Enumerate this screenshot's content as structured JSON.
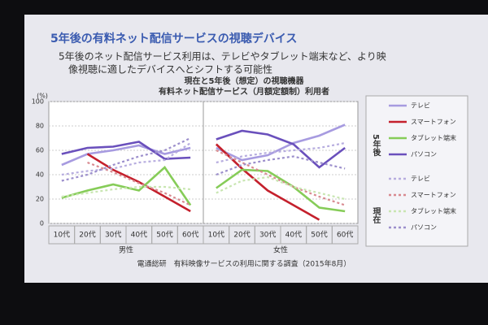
{
  "slide": {
    "title": "5年後の有料ネット配信サービスの視聴デバイス",
    "bullet": [
      "5年後のネット配信サービス利用は、テレビやタブレット端末など、より映",
      "像視聴に適したデバイスへとシフトする可能性"
    ],
    "source": "電通総研　有料映像サービスの利用に関する調査（2015年8月）"
  },
  "chart_data": {
    "type": "line",
    "title": "現在と5年後（想定）の視聴機器",
    "subtitle": "有料ネット配信サービス（月額定額制）利用者",
    "ylabel": "(%)",
    "panels": [
      "男性",
      "女性"
    ],
    "categories": [
      "10代",
      "20代",
      "30代",
      "40代",
      "50代",
      "60代",
      "10代",
      "20代",
      "30代",
      "40代",
      "50代",
      "60代"
    ],
    "ylim": [
      0,
      100
    ],
    "yticks": [
      0,
      20,
      40,
      60,
      80,
      100
    ],
    "grid": true,
    "legend_groups": [
      "5年後",
      "現在"
    ],
    "series": [
      {
        "name": "テレビ",
        "color": "#a79be0",
        "style": "solid",
        "values": [
          48,
          57,
          60,
          64,
          57,
          62,
          62,
          52,
          56,
          66,
          72,
          81
        ]
      },
      {
        "name": "スマートフォン",
        "color": "#c4202c",
        "style": "solid",
        "values": [
          null,
          57,
          44,
          34,
          22,
          10,
          65,
          45,
          27,
          15,
          3,
          null
        ]
      },
      {
        "name": "タブレット端末",
        "color": "#86cc58",
        "style": "solid",
        "values": [
          21,
          27,
          32,
          27,
          46,
          15,
          29,
          44,
          43,
          30,
          13,
          10
        ]
      },
      {
        "name": "パソコン",
        "color": "#6a50bc",
        "style": "solid",
        "values": [
          57,
          62,
          63,
          67,
          53,
          54,
          69,
          76,
          73,
          65,
          46,
          62
        ]
      },
      {
        "name": "テレビ",
        "color": "#b7addf",
        "style": "dotted",
        "values": [
          40,
          43,
          45,
          50,
          52,
          66,
          50,
          55,
          58,
          60,
          62,
          66
        ]
      },
      {
        "name": "スマートフォン",
        "color": "#d88a90",
        "style": "dotted",
        "values": [
          null,
          50,
          42,
          33,
          25,
          15,
          60,
          50,
          40,
          30,
          22,
          15
        ]
      },
      {
        "name": "タブレット端末",
        "color": "#c9e6b2",
        "style": "dotted",
        "values": [
          22,
          25,
          28,
          30,
          30,
          28,
          25,
          35,
          38,
          30,
          25,
          20
        ]
      },
      {
        "name": "パソコン",
        "color": "#9c8fcc",
        "style": "dotted",
        "values": [
          35,
          40,
          48,
          55,
          60,
          70,
          40,
          48,
          52,
          55,
          50,
          45
        ]
      }
    ]
  }
}
